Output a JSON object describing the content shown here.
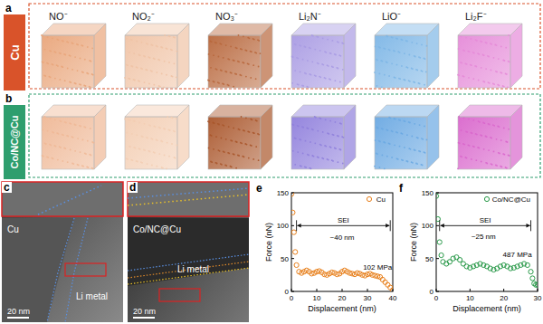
{
  "panels": {
    "species": [
      "NO⁻",
      "NO₂⁻",
      "NO₃⁻",
      "Li₂N⁻",
      "LiO⁻",
      "Li₂F⁻"
    ],
    "rows": [
      {
        "letter": "a",
        "sample": "Cu",
        "color": "#d9532a",
        "colors": [
          "#e9a57a",
          "#f0c3a5",
          "#b8673c",
          "#a99be3",
          "#7db6e6",
          "#e58ad8"
        ]
      },
      {
        "letter": "b",
        "sample": "Co/NC@Cu",
        "color": "#2e9e6e",
        "colors": [
          "#efb896",
          "#f3cdb2",
          "#a9552a",
          "#8f7fdc",
          "#6aa8e2",
          "#d966cc"
        ]
      }
    ],
    "tem": [
      {
        "letter": "c",
        "sample": "Cu",
        "region": "Li metal",
        "scale_bar": "20 nm"
      },
      {
        "letter": "d",
        "sample": "Co/NC@Cu",
        "region": "Li metal",
        "scale_bar": "20 nm"
      }
    ]
  },
  "chart_data": [
    {
      "type": "scatter",
      "title": "e",
      "x_label": "Displacement (nm)",
      "y_label": "Force (nN)",
      "x": [
        0,
        0.5,
        1,
        1.5,
        2,
        3,
        4,
        5,
        6,
        7,
        8,
        9,
        10,
        11,
        12,
        13,
        14,
        15,
        16,
        17,
        18,
        19,
        20,
        21,
        22,
        23,
        24,
        25,
        26,
        27,
        28,
        29,
        30,
        31,
        32,
        33,
        34,
        35,
        36,
        37,
        38,
        39,
        40
      ],
      "series": [
        {
          "name": "Cu",
          "color": "#e8801c",
          "marker": "circle",
          "values": [
            148,
            120,
            90,
            60,
            40,
            30,
            28,
            30,
            32,
            30,
            27,
            28,
            30,
            31,
            29,
            26,
            25,
            27,
            29,
            28,
            26,
            27,
            30,
            32,
            30,
            28,
            27,
            26,
            28,
            27,
            25,
            24,
            26,
            27,
            25,
            24,
            23,
            22,
            18,
            14,
            10,
            6,
            2
          ]
        }
      ],
      "xlim": [
        0,
        40
      ],
      "xticks": [
        0,
        10,
        20,
        30,
        40
      ],
      "ylim": [
        0,
        150
      ],
      "yticks": [
        0,
        50,
        100,
        150
      ],
      "legend": "upper right",
      "annotations": [
        {
          "text": "SEI",
          "x1": 2,
          "x2": 39,
          "y": 100
        },
        {
          "text": "~40 nm",
          "x": 20,
          "y": 78
        },
        {
          "text": "102 MPa",
          "x": 34,
          "y": 33
        }
      ]
    },
    {
      "type": "scatter",
      "title": "f",
      "x_label": "Displacement (nm)",
      "y_label": "Force (nN)",
      "x": [
        0,
        0.5,
        1,
        1.5,
        2,
        3,
        4,
        5,
        6,
        7,
        8,
        9,
        10,
        11,
        12,
        13,
        14,
        15,
        16,
        17,
        18,
        19,
        20,
        21,
        22,
        23,
        24,
        25,
        26,
        27,
        28,
        28.5,
        29,
        29.5,
        30
      ],
      "series": [
        {
          "name": "Co/NC@Cu",
          "color": "#2a9a4a",
          "marker": "circle",
          "values": [
            145,
            110,
            75,
            55,
            45,
            42,
            45,
            50,
            52,
            48,
            42,
            38,
            36,
            38,
            40,
            42,
            40,
            38,
            35,
            33,
            35,
            38,
            40,
            38,
            35,
            36,
            38,
            40,
            42,
            40,
            30,
            20,
            12,
            10,
            10
          ]
        }
      ],
      "xlim": [
        0,
        30
      ],
      "xticks": [
        0,
        10,
        20,
        30
      ],
      "ylim": [
        0,
        150
      ],
      "yticks": [
        0,
        50,
        100,
        150
      ],
      "legend": "upper right",
      "annotations": [
        {
          "text": "SEI",
          "x1": 1,
          "x2": 28,
          "y": 100
        },
        {
          "text": "~25 nm",
          "x": 14,
          "y": 80
        },
        {
          "text": "487 MPa",
          "x": 24,
          "y": 52
        }
      ]
    }
  ]
}
